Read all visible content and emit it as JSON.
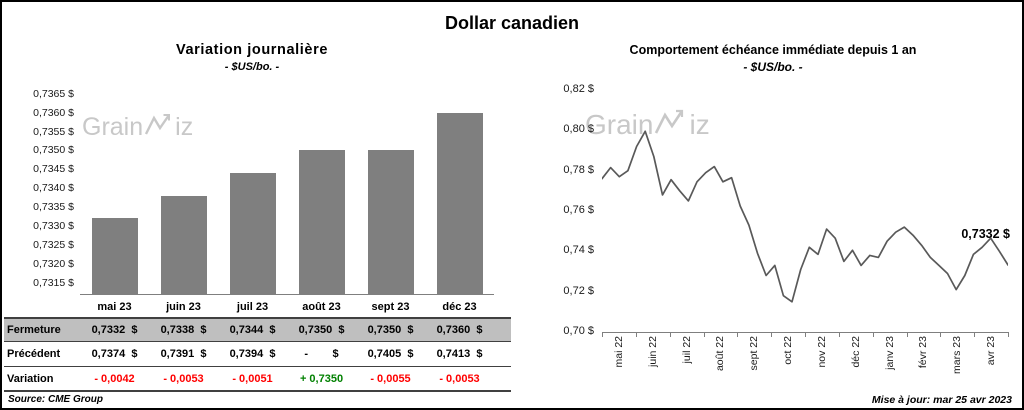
{
  "page": {
    "title": "Dollar canadien"
  },
  "left_chart": {
    "title": "Variation journalière",
    "subtitle": "- $US/bo. -",
    "watermark": {
      "prefix": "Grain",
      "suffix": "iz"
    }
  },
  "right_chart": {
    "title": "Comportement échéance immédiate depuis 1 an",
    "subtitle": "- $US/bo. -",
    "watermark": {
      "prefix": "Grain",
      "suffix": "iz"
    },
    "annotation": "0,7332 $"
  },
  "table": {
    "row_labels": [
      "Fermeture",
      "Précédent",
      "Variation"
    ],
    "columns": [
      "mai 23",
      "juin 23",
      "juil 23",
      "août 23",
      "sept 23",
      "déc 23"
    ],
    "fermeture": [
      "0,7332  $",
      "0,7338  $",
      "0,7344  $",
      "0,7350  $",
      "0,7350  $",
      "0,7360  $"
    ],
    "precedent": [
      "0,7374  $",
      "0,7391  $",
      "0,7394  $",
      "-        $",
      "0,7405  $",
      "0,7413  $"
    ],
    "variation": [
      {
        "text": "- 0,0042",
        "color": "#FF0000"
      },
      {
        "text": "- 0,0053",
        "color": "#FF0000"
      },
      {
        "text": "- 0,0051",
        "color": "#FF0000"
      },
      {
        "text": "+ 0,7350",
        "color": "#008000"
      },
      {
        "text": "- 0,0055",
        "color": "#FF0000"
      },
      {
        "text": "- 0,0053",
        "color": "#FF0000"
      }
    ]
  },
  "footer": {
    "source": "Source: CME Group",
    "updated": "Mise à jour: mar 25 avr 2023"
  },
  "chart_data": [
    {
      "type": "bar",
      "title": "Variation journalière",
      "subtitle": "- $US/bo. -",
      "categories": [
        "mai 23",
        "juin 23",
        "juil 23",
        "août 23",
        "sept 23",
        "déc 23"
      ],
      "values": [
        0.7332,
        0.7338,
        0.7344,
        0.735,
        0.735,
        0.736
      ],
      "ylim": [
        0.7312,
        0.7366
      ],
      "yticks": [
        0.7315,
        0.732,
        0.7325,
        0.733,
        0.7335,
        0.734,
        0.7345,
        0.735,
        0.7355,
        0.736,
        0.7365
      ],
      "ytick_labels": [
        "0,7315 $",
        "0,7320 $",
        "0,7325 $",
        "0,7330 $",
        "0,7335 $",
        "0,7340 $",
        "0,7345 $",
        "0,7350 $",
        "0,7355 $",
        "0,7360 $",
        "0,7365 $"
      ],
      "bar_color": "#7F7F7F",
      "grid": false,
      "legend": false
    },
    {
      "type": "line",
      "title": "Comportement échéance immédiate depuis 1 an",
      "subtitle": "- $US/bo. -",
      "x_labels": [
        "mai 22",
        "juin 22",
        "juil 22",
        "août 22",
        "sept 22",
        "oct 22",
        "nov 22",
        "déc 22",
        "janv 23",
        "févr 23",
        "mars 23",
        "avr 23"
      ],
      "values": [
        0.776,
        0.7815,
        0.777,
        0.78,
        0.792,
        0.7995,
        0.787,
        0.768,
        0.7755,
        0.77,
        0.765,
        0.7745,
        0.779,
        0.782,
        0.7745,
        0.7765,
        0.7625,
        0.753,
        0.739,
        0.728,
        0.733,
        0.718,
        0.715,
        0.731,
        0.742,
        0.7385,
        0.751,
        0.7465,
        0.735,
        0.7405,
        0.733,
        0.738,
        0.737,
        0.745,
        0.7495,
        0.752,
        0.748,
        0.743,
        0.737,
        0.733,
        0.729,
        0.721,
        0.728,
        0.7385,
        0.742,
        0.7465,
        0.74,
        0.7332
      ],
      "last_value": 0.7332,
      "last_value_label": "0,7332 $",
      "ylim": [
        0.7,
        0.82
      ],
      "yticks": [
        0.7,
        0.72,
        0.74,
        0.76,
        0.78,
        0.8,
        0.82
      ],
      "ytick_labels": [
        "0,70 $",
        "0,72 $",
        "0,74 $",
        "0,76 $",
        "0,78 $",
        "0,80 $",
        "0,82 $"
      ],
      "line_color": "#595959",
      "grid": false,
      "legend": false
    }
  ]
}
